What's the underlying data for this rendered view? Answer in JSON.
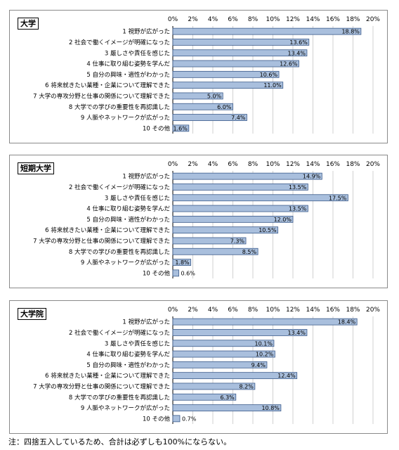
{
  "colors": {
    "bar_fill": "#a9bfdd",
    "bar_stroke": "#3b5a8a",
    "grid": "#d0d0d0"
  },
  "footnote": "注：四捨五入しているため、合計は必ずしも100%にならない。",
  "chart_data": [
    {
      "type": "bar",
      "orientation": "horizontal",
      "title": "大学",
      "xlim": [
        0,
        20
      ],
      "ticks": [
        "0%",
        "2%",
        "4%",
        "6%",
        "8%",
        "10%",
        "12%",
        "14%",
        "16%",
        "18%",
        "20%"
      ],
      "categories": [
        "1 視野が広がった",
        "2 社会で働くイメージが明確になった",
        "3 厳しさや責任を感じた",
        "4 仕事に取り組む姿勢を学んだ",
        "5 自分の興味・適性がわかった",
        "6 将来就きたい業種・企業について理解できた",
        "7 大学の専攻分野と仕事の関係について理解できた",
        "8 大学での学びの重要性を再認識した",
        "9 人脈やネットワークが広がった",
        "10 その他"
      ],
      "values": [
        18.8,
        13.6,
        13.4,
        12.6,
        10.6,
        11.0,
        5.0,
        6.0,
        7.4,
        1.6
      ],
      "labels": [
        "18.8%",
        "13.6%",
        "13.4%",
        "12.6%",
        "10.6%",
        "11.0%",
        "5.0%",
        "6.0%",
        "7.4%",
        "1.6%"
      ],
      "grid": true
    },
    {
      "type": "bar",
      "orientation": "horizontal",
      "title": "短期大学",
      "xlim": [
        0,
        20
      ],
      "ticks": [
        "0%",
        "2%",
        "4%",
        "6%",
        "8%",
        "10%",
        "12%",
        "14%",
        "16%",
        "18%",
        "20%"
      ],
      "categories": [
        "1 視野が広がった",
        "2 社会で働くイメージが明確になった",
        "3 厳しさや責任を感じた",
        "4 仕事に取り組む姿勢を学んだ",
        "5 自分の興味・適性がわかった",
        "6 将来就きたい業種・企業について理解できた",
        "7 大学の専攻分野と仕事の関係について理解できた",
        "8 大学での学びの重要性を再認識した",
        "9 人脈やネットワークが広がった",
        "10 その他"
      ],
      "values": [
        14.9,
        13.5,
        17.5,
        13.5,
        12.0,
        10.5,
        7.3,
        8.5,
        1.8,
        0.6
      ],
      "labels": [
        "14.9%",
        "13.5%",
        "17.5%",
        "13.5%",
        "12.0%",
        "10.5%",
        "7.3%",
        "8.5%",
        "1.8%",
        "0.6%"
      ],
      "grid": true
    },
    {
      "type": "bar",
      "orientation": "horizontal",
      "title": "大学院",
      "xlim": [
        0,
        20
      ],
      "ticks": [
        "0%",
        "2%",
        "4%",
        "6%",
        "8%",
        "10%",
        "12%",
        "14%",
        "16%",
        "18%",
        "20%"
      ],
      "categories": [
        "1 視野が広がった",
        "2 社会で働くイメージが明確になった",
        "3 厳しさや責任を感じた",
        "4 仕事に取り組む姿勢を学んだ",
        "5 自分の興味・適性がわかった",
        "6 将来就きたい業種・企業について理解できた",
        "7 大学の専攻分野と仕事の関係について理解できた",
        "8 大学での学びの重要性を再認識した",
        "9 人脈やネットワークが広がった",
        "10 その他"
      ],
      "values": [
        18.4,
        13.4,
        10.1,
        10.2,
        9.4,
        12.4,
        8.2,
        6.3,
        10.8,
        0.7
      ],
      "labels": [
        "18.4%",
        "13.4%",
        "10.1%",
        "10.2%",
        "9.4%",
        "12.4%",
        "8.2%",
        "6.3%",
        "10.8%",
        "0.7%"
      ],
      "grid": true
    }
  ]
}
